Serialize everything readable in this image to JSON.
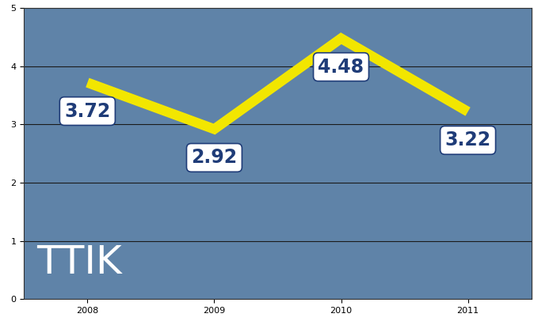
{
  "chart_data": {
    "type": "line",
    "categories": [
      "2008",
      "2009",
      "2010",
      "2011"
    ],
    "values": [
      3.72,
      2.92,
      4.48,
      3.22
    ],
    "color": "#f2e600",
    "ylim": [
      0,
      5
    ],
    "yticks": [
      0,
      1,
      2,
      3,
      4,
      5
    ],
    "grid": true,
    "data_labels": true,
    "annotations": [
      "TTIK"
    ]
  }
}
